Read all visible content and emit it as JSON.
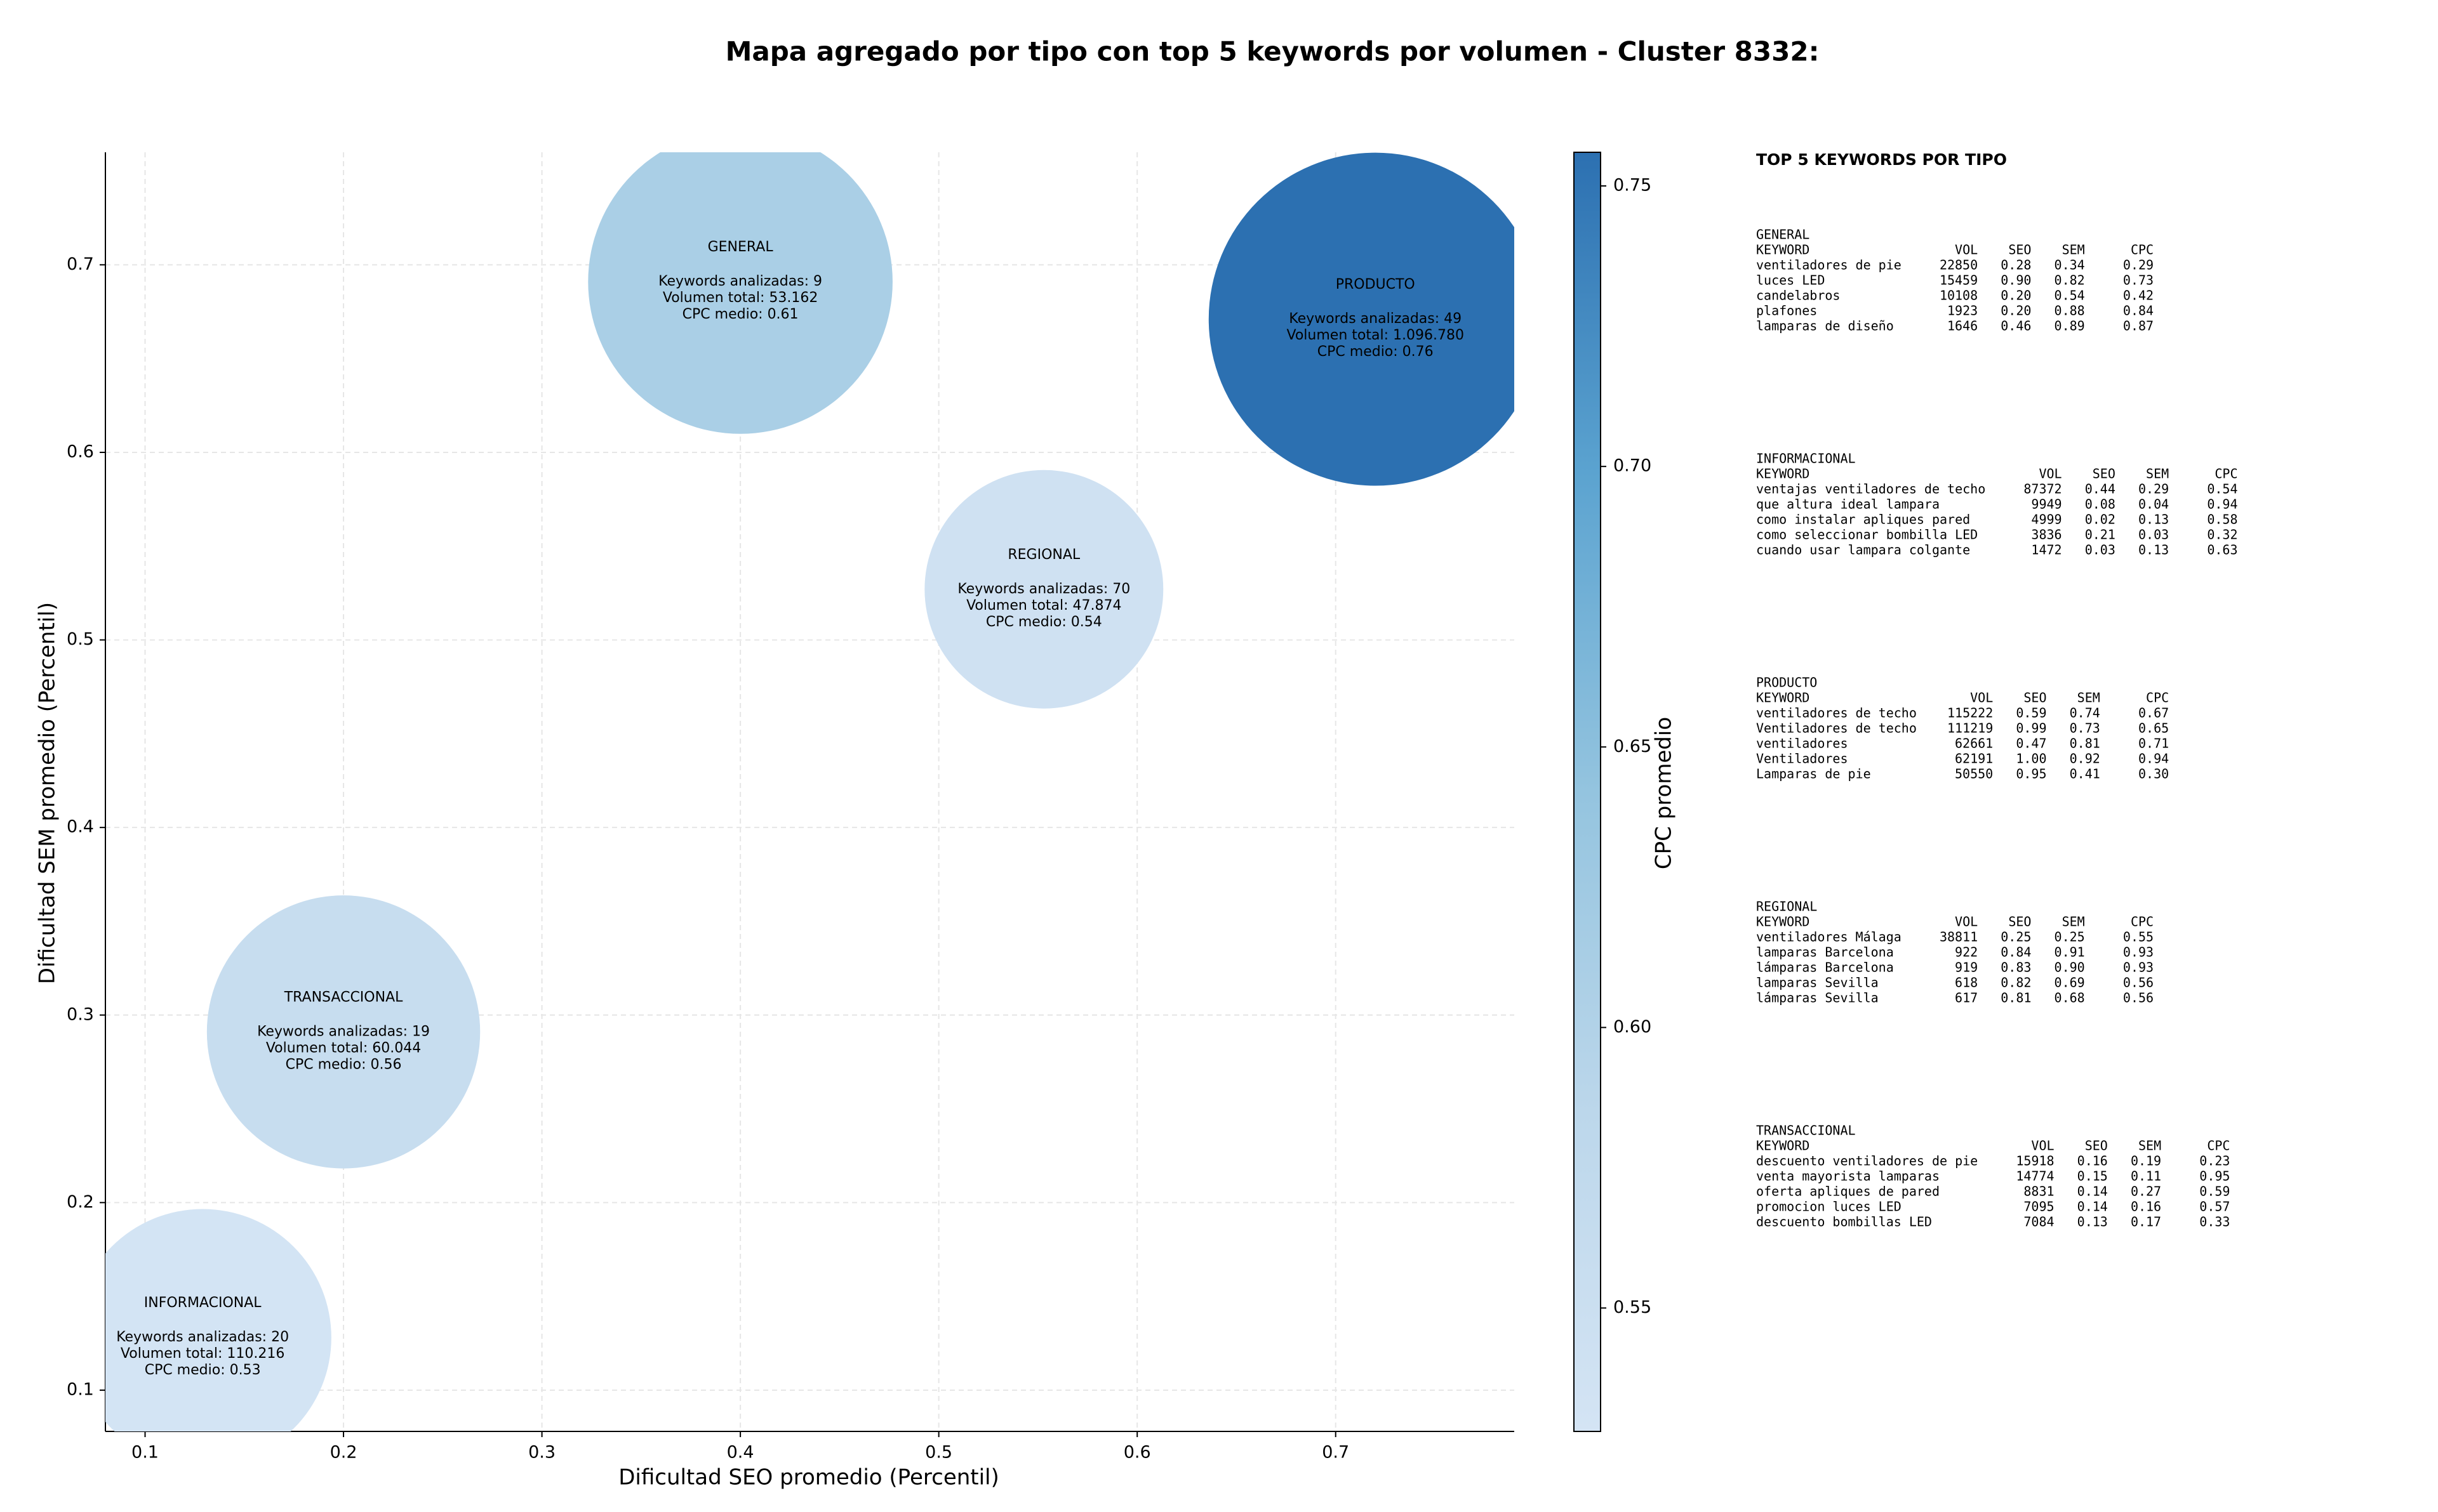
{
  "chart_data": {
    "type": "scatter",
    "title": "Mapa agregado por tipo con top 5 keywords por volumen - Cluster 8332:",
    "x_label": "Dificultad SEO promedio (Percentil)",
    "y_label": "Dificultad SEM promedio (Percentil)",
    "xlim": [
      0.08,
      0.79
    ],
    "ylim": [
      0.078,
      0.76
    ],
    "xticks": [
      0.1,
      0.2,
      0.3,
      0.4,
      0.5,
      0.6,
      0.7
    ],
    "yticks": [
      0.1,
      0.2,
      0.3,
      0.4,
      0.5,
      0.6,
      0.7
    ],
    "grid": true,
    "series": [
      {
        "names": [
          "GENERAL",
          "PRODUCTO",
          "REGIONAL",
          "TRANSACCIONAL",
          "INFORMACIONAL"
        ],
        "x": [
          0.4,
          0.72,
          0.553,
          0.2,
          0.129
        ],
        "y": [
          0.691,
          0.671,
          0.527,
          0.291,
          0.128
        ],
        "sizes": [
          13250,
          15870,
          8140,
          10670,
          9470
        ],
        "c": [
          0.61,
          0.76,
          0.54,
          0.56,
          0.53
        ],
        "annotations": [
          [
            "Keywords analizadas: 9",
            "Volumen total: 53.162",
            "CPC medio: 0.61"
          ],
          [
            "Keywords analizadas: 49",
            "Volumen total: 1.096.780",
            "CPC medio: 0.76"
          ],
          [
            "Keywords analizadas: 70",
            "Volumen total: 47.874",
            "CPC medio: 0.54"
          ],
          [
            "Keywords analizadas: 19",
            "Volumen total: 60.044",
            "CPC medio: 0.56"
          ],
          [
            "Keywords analizadas: 20",
            "Volumen total: 110.216",
            "CPC medio: 0.53"
          ]
        ]
      }
    ],
    "colorbar": {
      "label": "CPC promedio",
      "clim": [
        0.528,
        0.756
      ],
      "ticks": [
        0.55,
        {
          "value": 0.6,
          "label": "0.60"
        },
        0.65,
        {
          "value": 0.7,
          "label": "0.70"
        },
        0.75
      ],
      "colormap": [
        "#d4e4f4",
        "#bcd7eb",
        "#94c4df",
        "#5ba3d0",
        "#2c70b1"
      ]
    }
  },
  "side_panel": {
    "title": "TOP 5 KEYWORDS POR TIPO",
    "columns": [
      "KEYWORD",
      "VOL",
      "SEO",
      "SEM",
      "CPC"
    ],
    "groups": [
      {
        "name": "GENERAL",
        "rows": [
          [
            "ventiladores de pie",
            "22850",
            "0.28",
            "0.34",
            "0.29"
          ],
          [
            "luces LED",
            "15459",
            "0.90",
            "0.82",
            "0.73"
          ],
          [
            "candelabros",
            "10108",
            "0.20",
            "0.54",
            "0.42"
          ],
          [
            "plafones",
            "1923",
            "0.20",
            "0.88",
            "0.84"
          ],
          [
            "lamparas de diseño",
            "1646",
            "0.46",
            "0.89",
            "0.87"
          ]
        ]
      },
      {
        "name": "INFORMACIONAL",
        "rows": [
          [
            "ventajas ventiladores de techo",
            "87372",
            "0.44",
            "0.29",
            "0.54"
          ],
          [
            "que altura ideal lampara",
            "9949",
            "0.08",
            "0.04",
            "0.94"
          ],
          [
            "como instalar apliques pared",
            "4999",
            "0.02",
            "0.13",
            "0.58"
          ],
          [
            "como seleccionar bombilla LED",
            "3836",
            "0.21",
            "0.03",
            "0.32"
          ],
          [
            "cuando usar lampara colgante",
            "1472",
            "0.03",
            "0.13",
            "0.63"
          ]
        ]
      },
      {
        "name": "PRODUCTO",
        "rows": [
          [
            "ventiladores de techo",
            "115222",
            "0.59",
            "0.74",
            "0.67"
          ],
          [
            "Ventiladores de techo",
            "111219",
            "0.99",
            "0.73",
            "0.65"
          ],
          [
            "ventiladores",
            "62661",
            "0.47",
            "0.81",
            "0.71"
          ],
          [
            "Ventiladores",
            "62191",
            "1.00",
            "0.92",
            "0.94"
          ],
          [
            "Lamparas de pie",
            "50550",
            "0.95",
            "0.41",
            "0.30"
          ]
        ]
      },
      {
        "name": "REGIONAL",
        "rows": [
          [
            "ventiladores Málaga",
            "38811",
            "0.25",
            "0.25",
            "0.55"
          ],
          [
            "lamparas Barcelona",
            "922",
            "0.84",
            "0.91",
            "0.93"
          ],
          [
            "lámparas Barcelona",
            "919",
            "0.83",
            "0.90",
            "0.93"
          ],
          [
            "lamparas Sevilla",
            "618",
            "0.82",
            "0.69",
            "0.56"
          ],
          [
            "lámparas Sevilla",
            "617",
            "0.81",
            "0.68",
            "0.56"
          ]
        ]
      },
      {
        "name": "TRANSACCIONAL",
        "rows": [
          [
            "descuento ventiladores de pie",
            "15918",
            "0.16",
            "0.19",
            "0.23"
          ],
          [
            "venta mayorista lamparas",
            "14774",
            "0.15",
            "0.11",
            "0.95"
          ],
          [
            "oferta apliques de pared",
            "8831",
            "0.14",
            "0.27",
            "0.59"
          ],
          [
            "promocion luces LED",
            "7095",
            "0.14",
            "0.16",
            "0.57"
          ],
          [
            "descuento bombillas LED",
            "7084",
            "0.13",
            "0.17",
            "0.33"
          ]
        ]
      }
    ]
  }
}
